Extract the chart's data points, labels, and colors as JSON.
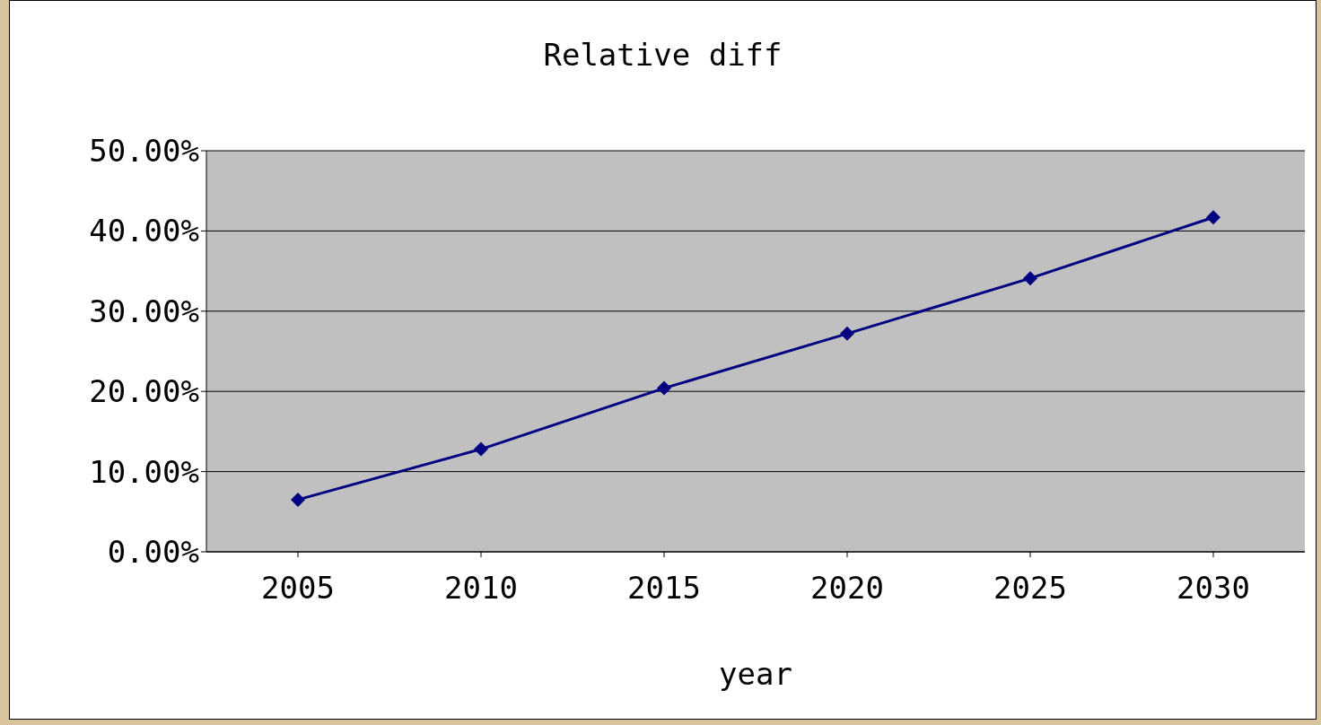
{
  "chart_data": {
    "type": "line",
    "title": "Relative diff",
    "xlabel": "year",
    "categories": [
      "2005",
      "2010",
      "2015",
      "2020",
      "2025",
      "2030"
    ],
    "series": [
      {
        "color": "#000080",
        "values": [
          6.5,
          12.8,
          20.4,
          27.2,
          34.1,
          41.7
        ]
      }
    ],
    "ylim": [
      0,
      50
    ],
    "yticks": [
      {
        "value": 0,
        "label": "0.00%"
      },
      {
        "value": 10,
        "label": "10.00%"
      },
      {
        "value": 20,
        "label": "20.00%"
      },
      {
        "value": 30,
        "label": "30.00%"
      },
      {
        "value": 40,
        "label": "40.00%"
      },
      {
        "value": 50,
        "label": "50.00%"
      }
    ],
    "grid": "y",
    "marker": "diamond",
    "line_style": "solid"
  }
}
